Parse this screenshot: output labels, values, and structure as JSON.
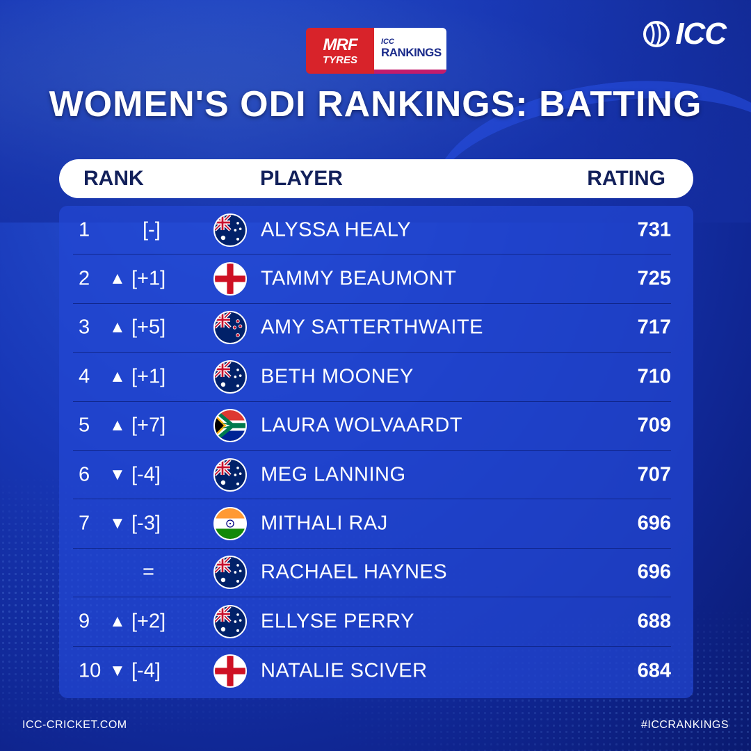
{
  "sponsor": {
    "mrf_main": "MRF",
    "mrf_sub": "TYRES",
    "icc_small": "ICC",
    "icc_big": "RANKINGS"
  },
  "brand": {
    "logo_text": "ICC"
  },
  "title": "WOMEN'S ODI RANKINGS: BATTING",
  "table": {
    "headers": {
      "rank": "RANK",
      "player": "PLAYER",
      "rating": "RATING"
    },
    "rows": [
      {
        "rank": "1",
        "arrow": "",
        "change": "[-]",
        "flag": "australia",
        "name": "ALYSSA HEALY",
        "rating": "731"
      },
      {
        "rank": "2",
        "arrow": "▲",
        "change": "[+1]",
        "flag": "england",
        "name": "TAMMY BEAUMONT",
        "rating": "725"
      },
      {
        "rank": "3",
        "arrow": "▲",
        "change": "[+5]",
        "flag": "new-zealand",
        "name": "AMY SATTERTHWAITE",
        "rating": "717"
      },
      {
        "rank": "4",
        "arrow": "▲",
        "change": "[+1]",
        "flag": "australia",
        "name": "BETH MOONEY",
        "rating": "710"
      },
      {
        "rank": "5",
        "arrow": "▲",
        "change": "[+7]",
        "flag": "south-africa",
        "name": "LAURA WOLVAARDT",
        "rating": "709"
      },
      {
        "rank": "6",
        "arrow": "▼",
        "change": "[-4]",
        "flag": "australia",
        "name": "MEG LANNING",
        "rating": "707"
      },
      {
        "rank": "7",
        "arrow": "▼",
        "change": "[-3]",
        "flag": "india",
        "name": "MITHALI RAJ",
        "rating": "696"
      },
      {
        "rank": "",
        "arrow": "",
        "change": "=",
        "flag": "australia",
        "name": "RACHAEL HAYNES",
        "rating": "696"
      },
      {
        "rank": "9",
        "arrow": "▲",
        "change": "[+2]",
        "flag": "australia",
        "name": "ELLYSE PERRY",
        "rating": "688"
      },
      {
        "rank": "10",
        "arrow": "▼",
        "change": "[-4]",
        "flag": "england",
        "name": "NATALIE SCIVER",
        "rating": "684"
      }
    ]
  },
  "footer": {
    "left": "ICC-CRICKET.COM",
    "right": "#ICCRANKINGS"
  },
  "colors": {
    "background": "#1838b8",
    "panel": "#2246d2",
    "mrf_red": "#d8232a",
    "header_text": "#12205a"
  }
}
